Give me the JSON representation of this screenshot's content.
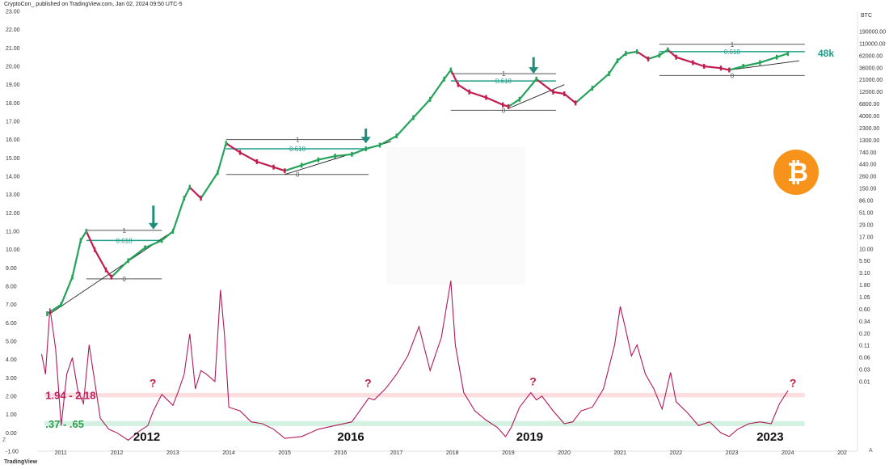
{
  "header": {
    "published": "CryptoCon_ published on TradingView.com, Jan 02, 2024 09:50 UTC-5",
    "currency": "BTC",
    "footer_logo": "TradingView",
    "z_label": "Z",
    "a_label": "A"
  },
  "colors": {
    "up_candle": "#26a35a",
    "down_candle": "#c21d4f",
    "indicator": "#b0195a",
    "fib_line": "#555555",
    "fib_618": "#1f9e8a",
    "upper_band": "#fbd8dc",
    "lower_band": "#cdeedd",
    "bitcoin_logo": "#f7931a"
  },
  "chart_data": {
    "type": "line",
    "left_axis": {
      "ticks": [
        "23.00",
        "22.00",
        "21.00",
        "20.00",
        "19.00",
        "18.00",
        "17.00",
        "16.00",
        "15.00",
        "14.00",
        "13.00",
        "12.00",
        "11.00",
        "10.00",
        "9.00",
        "8.00",
        "7.00",
        "6.00",
        "5.00",
        "4.00",
        "3.00",
        "2.00",
        "1.00",
        "0.00",
        "-1.00"
      ],
      "range": [
        -1,
        23
      ]
    },
    "right_axis": {
      "ticks": [
        "190000.00",
        "110000.00",
        "62000.00",
        "36000.00",
        "21000.00",
        "12000.00",
        "6800.00",
        "4000.00",
        "2300.00",
        "1300.00",
        "740.00",
        "440.00",
        "260.00",
        "150.00",
        "86.00",
        "51.00",
        "29.00",
        "17.00",
        "10.00",
        "5.50",
        "3.10",
        "1.80",
        "1.05",
        "0.60",
        "0.34",
        "0.20",
        "0.11",
        "0.06",
        "0.03",
        "0.01"
      ],
      "scale": "log"
    },
    "x_axis": {
      "ticks": [
        "2011",
        "2012",
        "2013",
        "2014",
        "2015",
        "2016",
        "2017",
        "2018",
        "2019",
        "2020",
        "2021",
        "2022",
        "2023",
        "2024",
        "202"
      ],
      "range": [
        2010.6,
        2025.2
      ]
    },
    "price_series": {
      "name": "",
      "x": [
        2010.75,
        2011.0,
        2011.2,
        2011.35,
        2011.45,
        2011.6,
        2011.8,
        2011.9,
        2012.2,
        2012.5,
        2012.8,
        2013.0,
        2013.2,
        2013.3,
        2013.5,
        2013.8,
        2013.95,
        2014.2,
        2014.5,
        2014.8,
        2015.0,
        2015.3,
        2015.6,
        2015.9,
        2016.2,
        2016.45,
        2016.7,
        2017.0,
        2017.3,
        2017.6,
        2017.85,
        2017.97,
        2018.1,
        2018.3,
        2018.6,
        2018.9,
        2019.0,
        2019.2,
        2019.5,
        2019.8,
        2020.0,
        2020.2,
        2020.5,
        2020.8,
        2020.95,
        2021.1,
        2021.3,
        2021.5,
        2021.7,
        2021.85,
        2022.0,
        2022.3,
        2022.5,
        2022.8,
        2022.95,
        2023.2,
        2023.5,
        2023.8,
        2024.0
      ],
      "y": [
        6.5,
        7.0,
        8.5,
        10.5,
        11.0,
        10.0,
        8.9,
        8.5,
        9.4,
        10.1,
        10.5,
        11.0,
        12.8,
        13.4,
        12.8,
        14.2,
        15.8,
        15.3,
        14.8,
        14.5,
        14.3,
        14.6,
        14.9,
        15.1,
        15.2,
        15.5,
        15.7,
        16.2,
        17.2,
        18.2,
        19.3,
        19.8,
        19.0,
        18.6,
        18.3,
        17.9,
        17.8,
        18.2,
        19.3,
        18.6,
        18.5,
        18.0,
        18.8,
        19.6,
        20.3,
        20.7,
        20.8,
        20.4,
        20.6,
        20.9,
        20.5,
        20.2,
        20.0,
        19.9,
        19.8,
        20.0,
        20.2,
        20.5,
        20.7
      ]
    },
    "indicator_series": {
      "name": "",
      "x": [
        2010.65,
        2010.72,
        2010.8,
        2010.9,
        2011.0,
        2011.1,
        2011.2,
        2011.3,
        2011.4,
        2011.5,
        2011.6,
        2011.7,
        2011.85,
        2012.0,
        2012.2,
        2012.4,
        2012.55,
        2012.65,
        2012.8,
        2013.0,
        2013.1,
        2013.2,
        2013.3,
        2013.4,
        2013.5,
        2013.6,
        2013.75,
        2013.85,
        2013.92,
        2014.0,
        2014.2,
        2014.4,
        2014.6,
        2014.8,
        2015.0,
        2015.3,
        2015.6,
        2015.9,
        2016.2,
        2016.5,
        2016.6,
        2016.8,
        2017.0,
        2017.2,
        2017.4,
        2017.6,
        2017.8,
        2017.92,
        2017.97,
        2018.05,
        2018.2,
        2018.4,
        2018.6,
        2018.8,
        2018.95,
        2019.05,
        2019.2,
        2019.4,
        2019.5,
        2019.6,
        2019.8,
        2020.0,
        2020.15,
        2020.3,
        2020.5,
        2020.7,
        2020.9,
        2021.0,
        2021.1,
        2021.2,
        2021.3,
        2021.45,
        2021.6,
        2021.75,
        2021.9,
        2022.0,
        2022.2,
        2022.4,
        2022.6,
        2022.8,
        2022.95,
        2023.1,
        2023.3,
        2023.5,
        2023.7,
        2023.85,
        2024.0
      ],
      "y": [
        4.3,
        3.2,
        6.8,
        4.6,
        0.4,
        3.2,
        4.1,
        2.3,
        1.6,
        4.8,
        2.8,
        0.8,
        0.2,
        0.0,
        -0.4,
        0.1,
        0.4,
        1.2,
        2.1,
        1.5,
        2.3,
        3.2,
        5.4,
        2.4,
        3.4,
        3.2,
        2.8,
        7.8,
        5.4,
        1.4,
        1.2,
        0.6,
        0.5,
        0.2,
        -0.3,
        -0.2,
        0.2,
        0.4,
        0.6,
        1.9,
        1.8,
        2.4,
        3.2,
        4.2,
        5.8,
        3.4,
        5.2,
        7.4,
        8.3,
        4.8,
        2.2,
        1.2,
        0.7,
        0.3,
        -0.2,
        0.3,
        1.4,
        2.2,
        1.8,
        2.0,
        1.2,
        0.5,
        0.6,
        1.2,
        1.4,
        2.4,
        4.8,
        6.9,
        5.6,
        4.2,
        4.8,
        3.2,
        2.4,
        1.3,
        3.3,
        1.7,
        1.1,
        0.4,
        0.6,
        0.0,
        -0.2,
        0.2,
        0.5,
        0.6,
        0.5,
        1.6,
        2.3
      ]
    },
    "bands": [
      {
        "label": "1.94 - 2.18",
        "from": 1.94,
        "to": 2.18
      },
      {
        "label": ".37 - .65",
        "from": 0.37,
        "to": 0.65
      }
    ],
    "fib_zones": [
      {
        "x0": 2011.45,
        "x1": 2012.8,
        "level_1": 11.05,
        "level_618": 10.5,
        "level_0": 8.4,
        "label_1": "1",
        "label_618": "0.618",
        "label_0": "0",
        "trend_x": [
          2010.8,
          2012.9
        ],
        "trend_y": [
          6.5,
          10.8
        ]
      },
      {
        "x0": 2013.95,
        "x1": 2016.5,
        "level_1": 16.0,
        "level_618": 15.5,
        "level_0": 14.1,
        "label_1": "1",
        "label_618": "0.618",
        "label_0": "0",
        "trend_x": [
          2015.0,
          2016.9
        ],
        "trend_y": [
          14.1,
          15.9
        ]
      },
      {
        "x0": 2017.97,
        "x1": 2019.85,
        "level_1": 19.6,
        "level_618": 19.2,
        "level_0": 17.6,
        "label_1": "1",
        "label_618": "0.618",
        "label_0": "0",
        "trend_x": [
          2019.0,
          2020.0
        ],
        "trend_y": [
          17.7,
          19.0
        ]
      },
      {
        "x0": 2021.7,
        "x1": 2024.3,
        "level_1": 21.2,
        "level_618": 20.8,
        "level_0": 19.5,
        "label_1": "1",
        "label_618": "0.618",
        "label_0": "0",
        "trend_x": [
          2022.95,
          2024.2
        ],
        "trend_y": [
          19.8,
          20.3
        ]
      }
    ],
    "arrows": [
      {
        "x": 2012.65,
        "y_from": 12.4,
        "y_to": 11.1
      },
      {
        "x": 2016.45,
        "y_from": 16.6,
        "y_to": 15.8
      },
      {
        "x": 2019.45,
        "y_from": 20.5,
        "y_to": 19.6
      }
    ],
    "question_marks": [
      {
        "x": 2012.65,
        "y": 2.5
      },
      {
        "x": 2016.5,
        "y": 2.5
      },
      {
        "x": 2019.45,
        "y": 2.6
      },
      {
        "x": 2024.1,
        "y": 2.5
      }
    ],
    "year_labels": [
      {
        "text": "2012",
        "x": 2012.55
      },
      {
        "text": "2016",
        "x": 2016.2
      },
      {
        "text": "2019",
        "x": 2019.4
      },
      {
        "text": "2023",
        "x": 2023.7
      }
    ],
    "price_label": "48k",
    "price_label_y": 20.7,
    "grid": false
  }
}
